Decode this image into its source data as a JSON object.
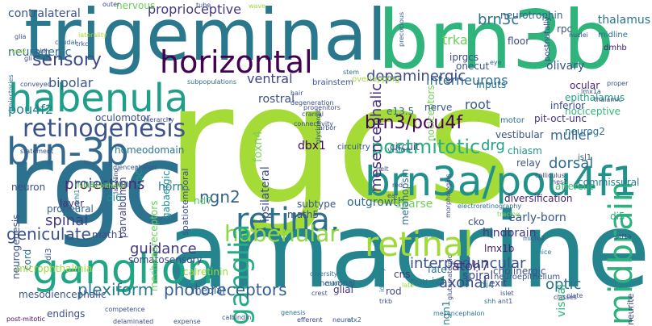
{
  "colors": {
    "background": "#ffffff"
  },
  "words": [
    {
      "text": "rgcs",
      "color": "#a5db36"
    },
    {
      "text": "rgc",
      "color": "#2c728e"
    },
    {
      "text": "amacrine",
      "color": "#25858e"
    },
    {
      "text": "trigeminal",
      "color": "#2a788e"
    },
    {
      "text": "brn3b",
      "color": "#2fb47c"
    },
    {
      "text": "horizontal",
      "color": "#440154"
    },
    {
      "text": "habenula",
      "color": "#1f9e89"
    },
    {
      "text": "brn3a/pou4f1",
      "color": "#21918c"
    },
    {
      "text": "retinogenesis",
      "color": "#3b528b"
    },
    {
      "text": "brn-3b",
      "color": "#31688e"
    },
    {
      "text": "ganglion",
      "color": "#21a685"
    },
    {
      "text": "retina.",
      "color": "#2d708e"
    },
    {
      "text": "habenular",
      "color": "#8fd744"
    },
    {
      "text": "retinal",
      "color": "#a0da39"
    },
    {
      "text": "ganglia",
      "color": "#25ac82"
    },
    {
      "text": "midbrain",
      "color": "#2db27d"
    },
    {
      "text": "postmitotic",
      "color": "#29af7f"
    },
    {
      "text": "brn3/pou4f",
      "color": "#440154"
    },
    {
      "text": "sensory",
      "color": "#3e4989"
    },
    {
      "text": "bipolar",
      "color": "#38588c"
    },
    {
      "text": "pou4f2",
      "color": "#26828e"
    },
    {
      "text": "projections",
      "color": "#482878"
    },
    {
      "text": "geniculate",
      "color": "#3b528b"
    },
    {
      "text": "plexiform",
      "color": "#2a788e"
    },
    {
      "text": "photoreceptors",
      "color": "#355f8d"
    },
    {
      "text": "interneurons",
      "color": "#2e6e8e"
    },
    {
      "text": "dopaminergic",
      "color": "#3e4a89"
    },
    {
      "text": "mesencephalic",
      "color": "#472d7b"
    },
    {
      "text": "proprioceptive",
      "color": "#453781"
    },
    {
      "text": "ventral",
      "color": "#414487"
    },
    {
      "text": "nervous",
      "color": "#6ccd5a"
    },
    {
      "text": "brn3c",
      "color": "#2d708e"
    },
    {
      "text": "ngn2",
      "color": "#33638d"
    },
    {
      "text": "drg",
      "color": "#1fa088"
    },
    {
      "text": "muller",
      "color": "#31688e"
    },
    {
      "text": "dorsal",
      "color": "#2e6d8e"
    },
    {
      "text": "interpeduncular",
      "color": "#3b528b"
    },
    {
      "text": "axonal",
      "color": "#3e4c8a"
    },
    {
      "text": "optic",
      "color": "#2d718e"
    },
    {
      "text": "spinal",
      "color": "#424086"
    },
    {
      "text": "guidance",
      "color": "#443a83"
    },
    {
      "text": "horn",
      "color": "#297b8e"
    },
    {
      "text": "di6",
      "color": "#23898e"
    },
    {
      "text": "nd7",
      "color": "#54c568"
    },
    {
      "text": "atoh7",
      "color": "#46327e"
    },
    {
      "text": "root",
      "color": "#365c8d"
    },
    {
      "text": "rpcs",
      "color": "#1f968b"
    },
    {
      "text": "ipsilateral",
      "color": "#3d4e8a"
    },
    {
      "text": "gabaergic",
      "color": "#21918c"
    },
    {
      "text": "spatiotemporal",
      "color": "#3b518b"
    },
    {
      "text": "trka",
      "color": "#6ece58"
    },
    {
      "text": "iprgcs",
      "color": "#3e4a89"
    },
    {
      "text": "onecut",
      "color": "#3a548c"
    },
    {
      "text": "dmhb",
      "color": "#482475"
    },
    {
      "text": "thalamus",
      "color": "#2b748e"
    },
    {
      "text": "midline",
      "color": "#2e6f8e"
    },
    {
      "text": "olivary",
      "color": "#3a548c"
    },
    {
      "text": "floor",
      "color": "#3f4788"
    },
    {
      "text": "neurotrophin",
      "color": "#32648e"
    },
    {
      "text": "nociceptors",
      "color": "#74d055"
    },
    {
      "text": "epithalamus",
      "color": "#20a386"
    },
    {
      "text": "nociceptive",
      "color": "#35b779"
    },
    {
      "text": "ocular",
      "color": "#482475"
    },
    {
      "text": "neurog2",
      "color": "#2c738e"
    },
    {
      "text": "pit-oct-unc",
      "color": "#46327e"
    },
    {
      "text": "inferior",
      "color": "#3e4989"
    },
    {
      "text": "motor",
      "color": "#2c728e"
    },
    {
      "text": "vestibular",
      "color": "#3a548c"
    },
    {
      "text": "chiasm",
      "color": "#1f948c"
    },
    {
      "text": "relay",
      "color": "#39568c"
    },
    {
      "text": "afferent",
      "color": "#48c16e"
    },
    {
      "text": "diversification",
      "color": "#481f70"
    },
    {
      "text": "di5",
      "color": "#26ad81"
    },
    {
      "text": "neurite",
      "color": "#424186"
    },
    {
      "text": "commissural",
      "color": "#287c8e"
    },
    {
      "text": "isl1",
      "color": "#33638d"
    },
    {
      "text": "neuroepithelium",
      "color": "#3b528b"
    },
    {
      "text": "lmx1b",
      "color": "#481b6d"
    },
    {
      "text": "cholinergic",
      "color": "#3b528b"
    },
    {
      "text": "visual",
      "color": "#2fb47c"
    },
    {
      "text": "cko",
      "color": "#3d4d8a"
    },
    {
      "text": "hindbrain",
      "color": "#453882"
    },
    {
      "text": "early-born",
      "color": "#39568c"
    },
    {
      "text": "pou-iv",
      "color": "#2a778e"
    },
    {
      "text": "ngn1",
      "color": "#26828e"
    },
    {
      "text": "spiral",
      "color": "#3f4788"
    },
    {
      "text": "fate",
      "color": "#2c718e"
    },
    {
      "text": "di4",
      "color": "#2b758e"
    },
    {
      "text": "rod",
      "color": "#3e4a89"
    },
    {
      "text": "cns",
      "color": "#46337f"
    },
    {
      "text": "glial",
      "color": "#453581"
    },
    {
      "text": "medial",
      "color": "#33638d"
    },
    {
      "text": "calretinin",
      "color": "#9bd93c"
    },
    {
      "text": "somatosensory",
      "color": "#3f4889"
    },
    {
      "text": "mechanoreceptors",
      "color": "#6ccd5a"
    },
    {
      "text": "math1",
      "color": "#3e4a89"
    },
    {
      "text": "math5",
      "color": "#3d4e8a"
    },
    {
      "text": "subtype",
      "color": "#3a548c"
    },
    {
      "text": "outgrowth",
      "color": "#306a8e"
    },
    {
      "text": "sparse",
      "color": "#6ece58"
    },
    {
      "text": "layer",
      "color": "#46307e"
    },
    {
      "text": "di3",
      "color": "#3b528b"
    },
    {
      "text": "proneural",
      "color": "#34618d"
    },
    {
      "text": "neurogenesis",
      "color": "#3b528b"
    },
    {
      "text": "cord",
      "color": "#2f6c8e"
    },
    {
      "text": "neuron",
      "color": "#3d4d8a"
    },
    {
      "text": "innervation",
      "color": "#20928c"
    },
    {
      "text": "microphthalmia",
      "color": "#9dd93b"
    },
    {
      "text": "mesodiencephalic",
      "color": "#3a538b"
    },
    {
      "text": "endings",
      "color": "#3d4d8a"
    },
    {
      "text": "post-mitotic",
      "color": "#46085c"
    },
    {
      "text": "parvalbumin",
      "color": "#424186"
    },
    {
      "text": "homeodomain",
      "color": "#2a788e"
    },
    {
      "text": "oculomotor",
      "color": "#3b518b"
    },
    {
      "text": "rostral",
      "color": "#3d4e8a"
    },
    {
      "text": "dbx1",
      "color": "#440154"
    },
    {
      "text": "e13.5",
      "color": "#2e6e8e"
    },
    {
      "text": "nerve",
      "color": "#3a548c"
    },
    {
      "text": "cone",
      "color": "#3b528b"
    },
    {
      "text": "inputs",
      "color": "#2a768e"
    },
    {
      "text": "exit",
      "color": "#3e4989"
    },
    {
      "text": "melanopsin",
      "color": "#2c718e"
    },
    {
      "text": "circuitry",
      "color": "#3b518b"
    },
    {
      "text": "circuit",
      "color": "#3b518b"
    },
    {
      "text": "vision",
      "color": "#2a788e"
    },
    {
      "text": "contralateral",
      "color": "#3a548c"
    },
    {
      "text": "neurogenic",
      "color": "#2e6e8e"
    },
    {
      "text": "rpc",
      "color": "#3b528b"
    },
    {
      "text": "postnatally",
      "color": "#3e4a89"
    },
    {
      "text": "precocious",
      "color": "#365c8d"
    },
    {
      "text": "neuronal",
      "color": "#3a538b"
    },
    {
      "text": "hierarchy",
      "color": "#3e4c8a"
    },
    {
      "text": "subpopulations",
      "color": "#2e6e8e"
    },
    {
      "text": "brainstem",
      "color": "#3b528b"
    },
    {
      "text": "overlapping",
      "color": "#9fda3a"
    },
    {
      "text": "foxn4",
      "color": "#7ad151"
    },
    {
      "text": "glia",
      "color": "#3b528b"
    },
    {
      "text": "laterality",
      "color": "#a5db36"
    },
    {
      "text": "caudal",
      "color": "#2e6e8e"
    },
    {
      "text": "conveyed",
      "color": "#3e4a89"
    },
    {
      "text": "trajectories",
      "color": "#2a788e"
    },
    {
      "text": "statement",
      "color": "#3b528b"
    },
    {
      "text": "labeling",
      "color": "#3d4e8a"
    },
    {
      "text": "barhl1",
      "color": "#2a788e"
    },
    {
      "text": "diencephalon",
      "color": "#3a538b"
    },
    {
      "text": "competence",
      "color": "#3e4a89"
    },
    {
      "text": "expense",
      "color": "#3b528b"
    },
    {
      "text": "calbindin",
      "color": "#3b528b"
    },
    {
      "text": "efferent",
      "color": "#3e4989"
    },
    {
      "text": "neural",
      "color": "#3b528b"
    },
    {
      "text": "genesis",
      "color": "#2c718e"
    },
    {
      "text": "otx2",
      "color": "#2e6e8e"
    },
    {
      "text": "mesencephalon",
      "color": "#2a788e"
    },
    {
      "text": "trkb",
      "color": "#3b528b"
    },
    {
      "text": "late",
      "color": "#a0da39"
    },
    {
      "text": "diversity",
      "color": "#2c718e"
    },
    {
      "text": "identity",
      "color": "#2a788e"
    },
    {
      "text": "coloboma",
      "color": "#2a788e"
    },
    {
      "text": "crest",
      "color": "#3d4e8a"
    },
    {
      "text": "cranial",
      "color": "#3b528b"
    },
    {
      "text": "degeneration",
      "color": "#3b528b"
    },
    {
      "text": "progenitors",
      "color": "#3d4e8a"
    },
    {
      "text": "connectivity",
      "color": "#3b528b"
    },
    {
      "text": "glycinergic",
      "color": "#3b528b"
    },
    {
      "text": "arbor",
      "color": "#3b528b"
    },
    {
      "text": "morphologies",
      "color": "#3e4989"
    },
    {
      "text": "electroretinography",
      "color": "#2e6e8e"
    },
    {
      "text": "tracing",
      "color": "#7ad151"
    },
    {
      "text": "mice",
      "color": "#2a788e"
    },
    {
      "text": "micro2",
      "color": "#3b528b"
    },
    {
      "text": "classes",
      "color": "#3e4a89"
    },
    {
      "text": "plate",
      "color": "#3b528b"
    },
    {
      "text": "colliculus",
      "color": "#3e4989"
    },
    {
      "text": "hes1",
      "color": "#3b528b"
    },
    {
      "text": "eye",
      "color": "#2e6e8e"
    },
    {
      "text": "tube",
      "color": "#3b528b"
    },
    {
      "text": "wave",
      "color": "#9fda3a"
    },
    {
      "text": "outer",
      "color": "#3e4a89"
    },
    {
      "text": "hair",
      "color": "#3b528b"
    },
    {
      "text": "stem",
      "color": "#2e6e8e"
    },
    {
      "text": "red",
      "color": "#3b528b"
    },
    {
      "text": "ear",
      "color": "#3e4a89"
    },
    {
      "text": "helt",
      "color": "#3b528b"
    },
    {
      "text": "gli",
      "color": "#3e4989"
    },
    {
      "text": "vsx2",
      "color": "#a0da39"
    },
    {
      "text": "bhlh",
      "color": "#3b528b"
    },
    {
      "text": "trkc",
      "color": "#3b528b"
    },
    {
      "text": "nuclei",
      "color": "#3b528b"
    },
    {
      "text": "ptf1a",
      "color": "#3e4a89"
    },
    {
      "text": "shh",
      "color": "#2e6e8e"
    },
    {
      "text": "islet",
      "color": "#3b528b"
    },
    {
      "text": "ant1",
      "color": "#3b528b"
    },
    {
      "text": "glutamatergic",
      "color": "#3e4989"
    },
    {
      "text": "neuroepithelial",
      "color": "#a0da39"
    },
    {
      "text": "lmx1a",
      "color": "#3b528b"
    },
    {
      "text": "thalamic",
      "color": "#3e4a89"
    },
    {
      "text": "proper",
      "color": "#3b528b"
    },
    {
      "text": "delaminated",
      "color": "#3e4989"
    }
  ]
}
